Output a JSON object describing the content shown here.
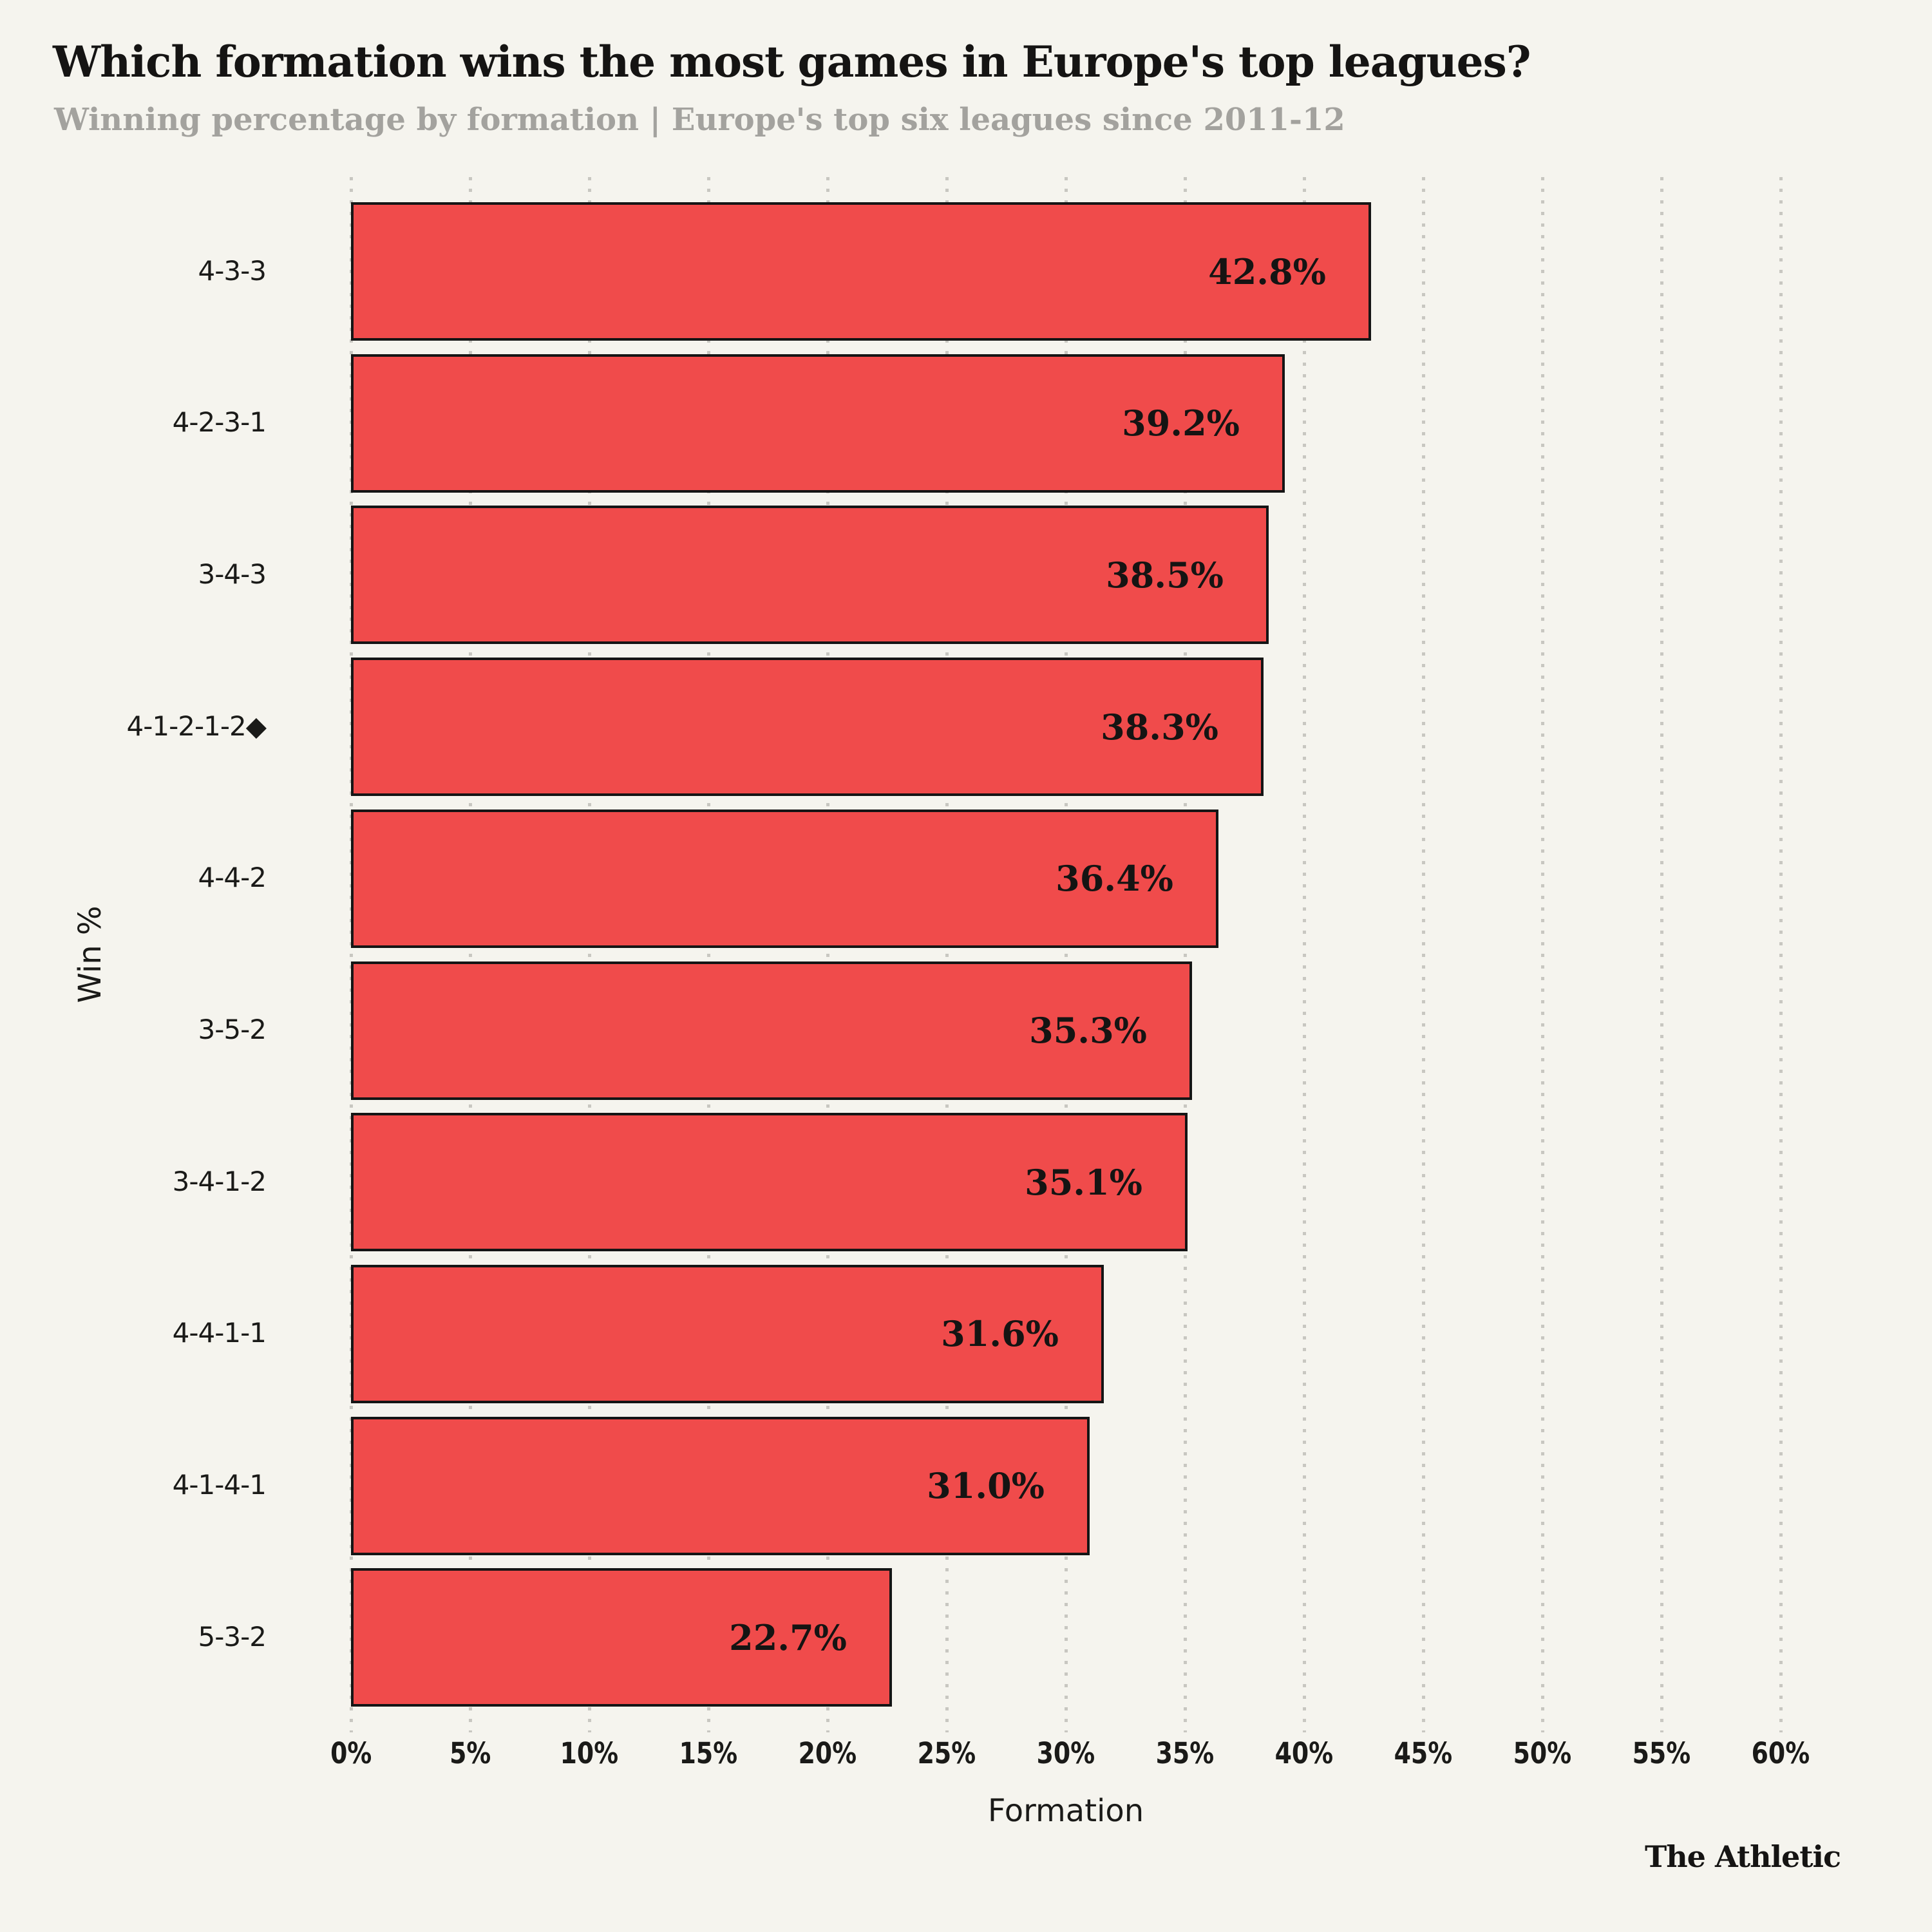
{
  "header": {
    "title": "Which formation wins the most games in Europe's top leagues?",
    "subtitle": "Winning percentage by formation | Europe's top six leagues since 2011-12"
  },
  "footer": {
    "source": "The Athletic"
  },
  "chart_data": {
    "type": "bar",
    "orientation": "horizontal",
    "title": "Which formation wins the most games in Europe's top leagues?",
    "subtitle": "Winning percentage by formation | Europe's top six leagues since 2011-12",
    "categories": [
      "4-3-3",
      "4-2-3-1",
      "3-4-3",
      "4-1-2-1-2◆",
      "4-4-2",
      "3-5-2",
      "3-4-1-2",
      "4-4-1-1",
      "4-1-4-1",
      "5-3-2"
    ],
    "values": [
      42.8,
      39.2,
      38.5,
      38.3,
      36.4,
      35.3,
      35.1,
      31.6,
      31.0,
      22.7
    ],
    "value_labels": [
      "42.8%",
      "39.2%",
      "38.5%",
      "38.3%",
      "36.4%",
      "35.3%",
      "35.1%",
      "31.6%",
      "31.0%",
      "22.7%"
    ],
    "xlabel": "Formation",
    "ylabel": "Win %",
    "xlim": [
      0,
      60
    ],
    "xtick_step": 5,
    "xtick_labels": [
      "0%",
      "5%",
      "10%",
      "15%",
      "20%",
      "25%",
      "30%",
      "35%",
      "40%",
      "45%",
      "50%",
      "55%",
      "60%"
    ],
    "grid": "dotted-vertical",
    "legend": "none",
    "colors": {
      "background": "#F5F4EE",
      "bar_fill": "#F04B4B",
      "bar_border": "#151515",
      "value_text": "#151413",
      "title_text": "#151413",
      "subtitle_text": "#A3A29E",
      "axis_text": "#1A1A18",
      "gridline": "#C8C7C1"
    }
  }
}
